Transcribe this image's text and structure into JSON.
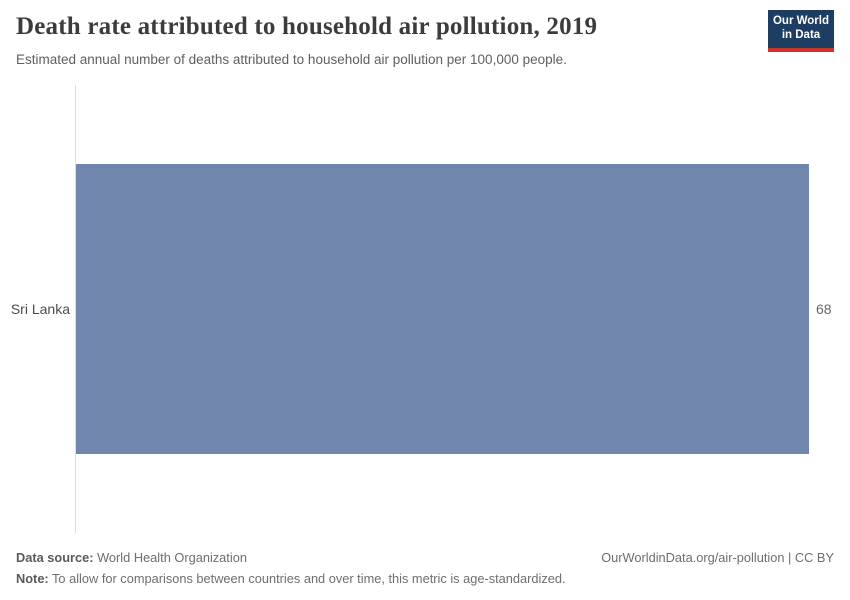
{
  "header": {
    "title": "Death rate attributed to household air pollution, 2019",
    "subtitle": "Estimated annual number of deaths attributed to household air pollution per 100,000 people.",
    "logo": {
      "line1": "Our World",
      "line2": "in Data",
      "bg_color": "#1d3d63",
      "accent_color": "#cf342c"
    }
  },
  "chart_data": {
    "type": "bar",
    "orientation": "horizontal",
    "title": "Death rate attributed to household air pollution, 2019",
    "subtitle": "Estimated annual number of deaths attributed to household air pollution per 100,000 people.",
    "categories": [
      "Sri Lanka"
    ],
    "values": [
      68
    ],
    "value_labels": [
      "68"
    ],
    "xlabel": "",
    "ylabel": "",
    "xlim": [
      0,
      68
    ],
    "grid": false,
    "legend": "none",
    "bar_color": "#7186ac",
    "axis_line_color": "#dddddd"
  },
  "footer": {
    "datasource_label": "Data source:",
    "datasource_value": " World Health Organization",
    "note_label": "Note:",
    "note_value": " To allow for comparisons between countries and over time, this metric is age-standardized.",
    "link": "OurWorldinData.org/air-pollution | CC BY"
  }
}
